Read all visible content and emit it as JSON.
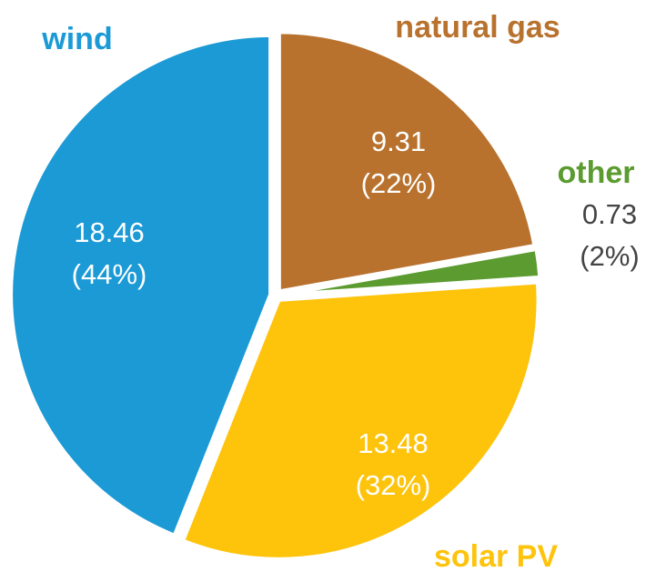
{
  "chart_data": {
    "type": "pie",
    "categories": [
      "natural gas",
      "other",
      "solar PV",
      "wind"
    ],
    "values": [
      9.31,
      0.73,
      13.48,
      18.46
    ],
    "percent_labels": [
      "(22%)",
      "(2%)",
      "(32%)",
      "(44%)"
    ],
    "colors": [
      "#b8722e",
      "#5b9b30",
      "#fec30b",
      "#1b9ad6"
    ]
  }
}
